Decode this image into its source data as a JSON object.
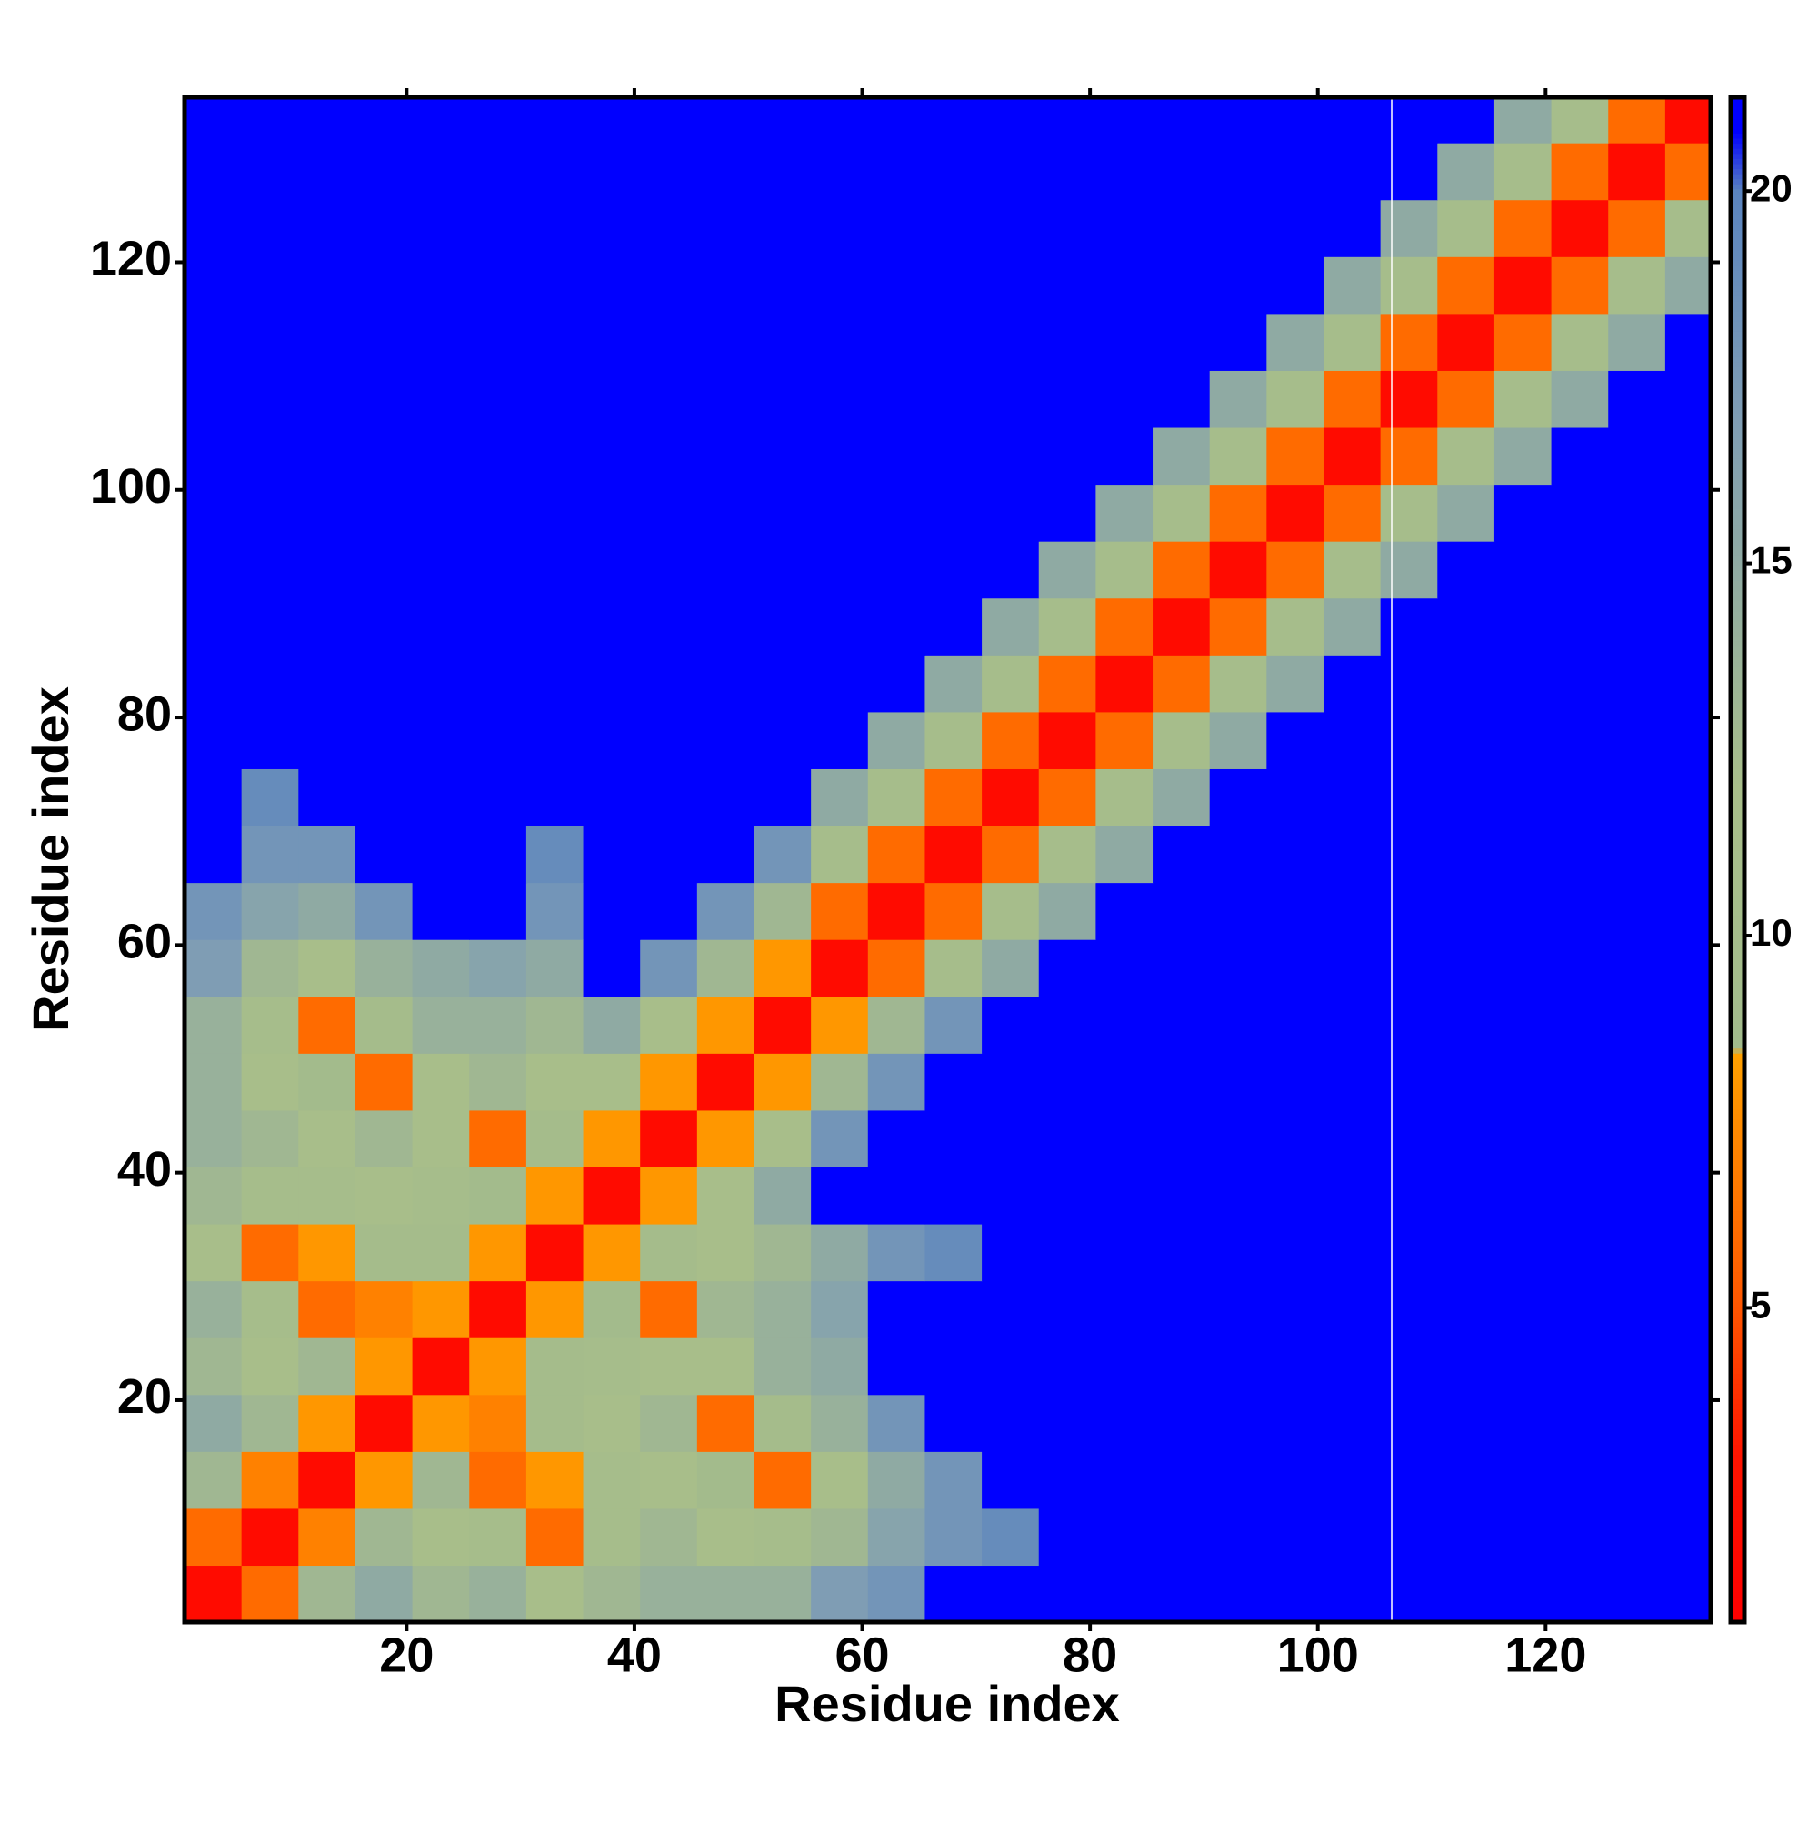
{
  "chart_data": {
    "type": "heatmap",
    "xlabel": "Residue index",
    "ylabel": "Residue index",
    "x": [
      3,
      8,
      13,
      18,
      23,
      28,
      33,
      38,
      43,
      48,
      53,
      58,
      63,
      68,
      73,
      78,
      83,
      88,
      93,
      98,
      103,
      108,
      113,
      118,
      123,
      128,
      133
    ],
    "y": [
      3,
      8,
      13,
      18,
      23,
      28,
      33,
      38,
      43,
      48,
      53,
      58,
      63,
      68,
      73,
      78,
      83,
      88,
      93,
      98,
      103,
      108,
      113,
      118,
      123,
      128,
      133
    ],
    "cell_size": 5,
    "values": [
      [
        2,
        6,
        13,
        15,
        13,
        14,
        12,
        13,
        14,
        14,
        14,
        17,
        18,
        21,
        21,
        21,
        21,
        21,
        21,
        21,
        21,
        21,
        21,
        21,
        21,
        21,
        21
      ],
      [
        6,
        2,
        7,
        13,
        12,
        11,
        6,
        11,
        13,
        12,
        11,
        13,
        16,
        18,
        19,
        21,
        21,
        21,
        21,
        21,
        21,
        21,
        21,
        21,
        21,
        21,
        21
      ],
      [
        13,
        7,
        2,
        8,
        13,
        6,
        8,
        11,
        12,
        9,
        6,
        12,
        15,
        18,
        21,
        21,
        21,
        21,
        21,
        21,
        21,
        21,
        21,
        21,
        21,
        21,
        21
      ],
      [
        15,
        13,
        8,
        2,
        8,
        7,
        10,
        12,
        13,
        6,
        10,
        14,
        18,
        21,
        21,
        21,
        21,
        21,
        21,
        21,
        21,
        21,
        21,
        21,
        21,
        21,
        21
      ],
      [
        13,
        12,
        13,
        8,
        2,
        8,
        10,
        11,
        12,
        12,
        14,
        15,
        21,
        21,
        21,
        21,
        21,
        21,
        21,
        21,
        21,
        21,
        21,
        21,
        21,
        21,
        21
      ],
      [
        14,
        11,
        6,
        7,
        8,
        2,
        8,
        9,
        6,
        13,
        14,
        16,
        21,
        21,
        21,
        21,
        21,
        21,
        21,
        21,
        21,
        21,
        21,
        21,
        21,
        21,
        21
      ],
      [
        12,
        6,
        8,
        10,
        10,
        8,
        2,
        8,
        10,
        12,
        13,
        15,
        18,
        19,
        21,
        21,
        21,
        21,
        21,
        21,
        21,
        21,
        21,
        21,
        21,
        21,
        21
      ],
      [
        13,
        11,
        11,
        12,
        11,
        9,
        8,
        2,
        8,
        12,
        15,
        21,
        21,
        21,
        21,
        21,
        21,
        21,
        21,
        21,
        21,
        21,
        21,
        21,
        21,
        21,
        21
      ],
      [
        14,
        13,
        12,
        13,
        12,
        6,
        10,
        8,
        2,
        8,
        12,
        18,
        21,
        21,
        21,
        21,
        21,
        21,
        21,
        21,
        21,
        21,
        21,
        21,
        21,
        21,
        21
      ],
      [
        14,
        12,
        9,
        6,
        12,
        13,
        12,
        12,
        8,
        2,
        8,
        13,
        18,
        21,
        21,
        21,
        21,
        21,
        21,
        21,
        21,
        21,
        21,
        21,
        21,
        21,
        21
      ],
      [
        14,
        11,
        6,
        10,
        14,
        14,
        13,
        15,
        12,
        8,
        2,
        8,
        13,
        18,
        21,
        21,
        21,
        21,
        21,
        21,
        21,
        21,
        21,
        21,
        21,
        21,
        21
      ],
      [
        17,
        13,
        12,
        14,
        15,
        16,
        15,
        21,
        18,
        13,
        8,
        2,
        6,
        11,
        15,
        21,
        21,
        21,
        21,
        21,
        21,
        21,
        21,
        21,
        21,
        21,
        21
      ],
      [
        18,
        16,
        15,
        18,
        21,
        21,
        18,
        21,
        21,
        18,
        13,
        6,
        2,
        6,
        11,
        15,
        21,
        21,
        21,
        21,
        21,
        21,
        21,
        21,
        21,
        21,
        21
      ],
      [
        21,
        18,
        18,
        21,
        21,
        21,
        19,
        21,
        21,
        21,
        18,
        11,
        6,
        2,
        6,
        11,
        15,
        21,
        21,
        21,
        21,
        21,
        21,
        21,
        21,
        21,
        21
      ],
      [
        21,
        19,
        21,
        21,
        21,
        21,
        21,
        21,
        21,
        21,
        21,
        15,
        11,
        6,
        2,
        6,
        11,
        15,
        21,
        21,
        21,
        21,
        21,
        21,
        21,
        21,
        21
      ],
      [
        21,
        21,
        21,
        21,
        21,
        21,
        21,
        21,
        21,
        21,
        21,
        21,
        15,
        11,
        6,
        2,
        6,
        11,
        15,
        21,
        21,
        21,
        21,
        21,
        21,
        21,
        21
      ],
      [
        21,
        21,
        21,
        21,
        21,
        21,
        21,
        21,
        21,
        21,
        21,
        21,
        21,
        15,
        11,
        6,
        2,
        6,
        11,
        15,
        21,
        21,
        21,
        21,
        21,
        21,
        21
      ],
      [
        21,
        21,
        21,
        21,
        21,
        21,
        21,
        21,
        21,
        21,
        21,
        21,
        21,
        21,
        15,
        11,
        6,
        2,
        6,
        11,
        15,
        21,
        21,
        21,
        21,
        21,
        21
      ],
      [
        21,
        21,
        21,
        21,
        21,
        21,
        21,
        21,
        21,
        21,
        21,
        21,
        21,
        21,
        21,
        15,
        11,
        6,
        2,
        6,
        11,
        15,
        21,
        21,
        21,
        21,
        21
      ],
      [
        21,
        21,
        21,
        21,
        21,
        21,
        21,
        21,
        21,
        21,
        21,
        21,
        21,
        21,
        21,
        21,
        15,
        11,
        6,
        2,
        6,
        11,
        15,
        21,
        21,
        21,
        21
      ],
      [
        21,
        21,
        21,
        21,
        21,
        21,
        21,
        21,
        21,
        21,
        21,
        21,
        21,
        21,
        21,
        21,
        21,
        15,
        11,
        6,
        2,
        6,
        11,
        15,
        21,
        21,
        21
      ],
      [
        21,
        21,
        21,
        21,
        21,
        21,
        21,
        21,
        21,
        21,
        21,
        21,
        21,
        21,
        21,
        21,
        21,
        21,
        15,
        11,
        6,
        2,
        6,
        11,
        15,
        21,
        21
      ],
      [
        21,
        21,
        21,
        21,
        21,
        21,
        21,
        21,
        21,
        21,
        21,
        21,
        21,
        21,
        21,
        21,
        21,
        21,
        21,
        15,
        11,
        6,
        2,
        6,
        11,
        15,
        21
      ],
      [
        21,
        21,
        21,
        21,
        21,
        21,
        21,
        21,
        21,
        21,
        21,
        21,
        21,
        21,
        21,
        21,
        21,
        21,
        21,
        21,
        15,
        11,
        6,
        2,
        6,
        11,
        15
      ],
      [
        21,
        21,
        21,
        21,
        21,
        21,
        21,
        21,
        21,
        21,
        21,
        21,
        21,
        21,
        21,
        21,
        21,
        21,
        21,
        21,
        21,
        15,
        11,
        6,
        2,
        6,
        11
      ],
      [
        21,
        21,
        21,
        21,
        21,
        21,
        21,
        21,
        21,
        21,
        21,
        21,
        21,
        21,
        21,
        21,
        21,
        21,
        21,
        21,
        21,
        21,
        15,
        11,
        6,
        2,
        6
      ],
      [
        21,
        21,
        21,
        21,
        21,
        21,
        21,
        21,
        21,
        21,
        21,
        21,
        21,
        21,
        21,
        21,
        21,
        21,
        21,
        21,
        21,
        21,
        21,
        15,
        11,
        6,
        2
      ]
    ],
    "xlim": [
      0.5,
      134.5
    ],
    "ylim": [
      0.5,
      134.5
    ],
    "xticks": [
      20,
      40,
      60,
      80,
      100,
      120
    ],
    "yticks": [
      20,
      40,
      60,
      80,
      100,
      120
    ],
    "zlim": [
      0.78,
      21.26
    ],
    "zticks": [
      5,
      10,
      15,
      20
    ],
    "colorscale": [
      [
        0.78,
        "#ff0000"
      ],
      [
        3,
        "#ff1400"
      ],
      [
        5,
        "#ff5500"
      ],
      [
        8.4,
        "#ffa000"
      ],
      [
        8.5,
        "#a2bb8c"
      ],
      [
        12,
        "#a8be8a"
      ],
      [
        17,
        "#7f9db4"
      ],
      [
        20,
        "#5a84bf"
      ],
      [
        20.8,
        "#0000ff"
      ]
    ]
  }
}
